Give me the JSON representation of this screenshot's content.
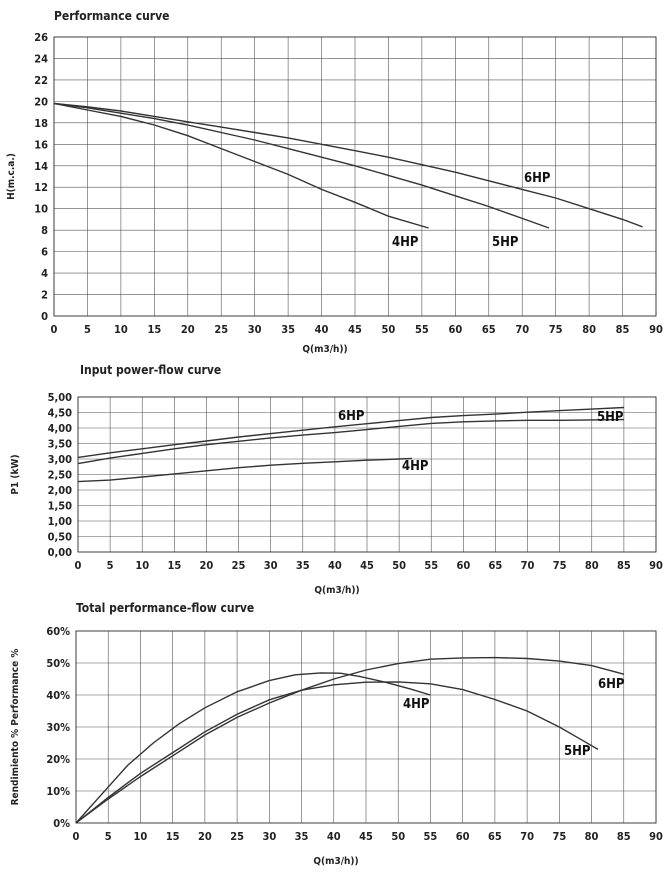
{
  "chart_data": [
    {
      "type": "line",
      "title": "Performance curve",
      "xlabel": "Q(m3/h))",
      "ylabel": "H(m.c.a.)",
      "xlim": [
        0,
        90
      ],
      "ylim": [
        0,
        26
      ],
      "xticks": [
        0,
        5,
        10,
        15,
        20,
        25,
        30,
        35,
        40,
        45,
        50,
        55,
        60,
        65,
        70,
        75,
        80,
        85,
        90
      ],
      "yticks": [
        0,
        2,
        4,
        6,
        8,
        10,
        12,
        14,
        16,
        18,
        20,
        22,
        24,
        26
      ],
      "ytick_labels": [
        "0",
        "2",
        "4",
        "6",
        "8",
        "10",
        "12",
        "14",
        "16",
        "18",
        "20",
        "22",
        "24",
        "26"
      ],
      "grid": true,
      "series": [
        {
          "name": "4HP",
          "x": [
            0,
            5,
            10,
            15,
            20,
            25,
            30,
            35,
            40,
            45,
            50,
            56
          ],
          "y": [
            19.8,
            19.2,
            18.6,
            17.8,
            16.8,
            15.6,
            14.4,
            13.2,
            11.8,
            10.6,
            9.3,
            8.2
          ]
        },
        {
          "name": "5HP",
          "x": [
            0,
            5,
            10,
            15,
            20,
            25,
            30,
            35,
            40,
            45,
            50,
            55,
            60,
            65,
            70,
            74
          ],
          "y": [
            19.8,
            19.4,
            18.9,
            18.4,
            17.8,
            17.1,
            16.4,
            15.6,
            14.8,
            14.0,
            13.1,
            12.2,
            11.2,
            10.2,
            9.1,
            8.2
          ]
        },
        {
          "name": "6HP",
          "x": [
            0,
            5,
            10,
            15,
            20,
            25,
            30,
            35,
            40,
            45,
            50,
            55,
            60,
            65,
            70,
            75,
            80,
            85,
            88
          ],
          "y": [
            19.8,
            19.5,
            19.1,
            18.6,
            18.1,
            17.6,
            17.1,
            16.6,
            16.0,
            15.4,
            14.8,
            14.1,
            13.4,
            12.6,
            11.8,
            11.0,
            10.0,
            9.0,
            8.3
          ]
        }
      ]
    },
    {
      "type": "line",
      "title": "Input power-flow curve",
      "xlabel": "Q(m3/h))",
      "ylabel": "P1 (kW)",
      "xlim": [
        0,
        90
      ],
      "ylim": [
        0,
        5
      ],
      "xticks": [
        0,
        5,
        10,
        15,
        20,
        25,
        30,
        35,
        40,
        45,
        50,
        55,
        60,
        65,
        70,
        75,
        80,
        85,
        90
      ],
      "yticks": [
        0,
        0.5,
        1,
        1.5,
        2,
        2.5,
        3,
        3.5,
        4,
        4.5,
        5
      ],
      "ytick_labels": [
        "0,00",
        "0,50",
        "1,00",
        "1,50",
        "2,00",
        "2,50",
        "3,00",
        "3,50",
        "4,00",
        "4,50",
        "5,00"
      ],
      "grid": true,
      "series": [
        {
          "name": "4HP",
          "x": [
            0,
            5,
            10,
            15,
            20,
            25,
            30,
            35,
            40,
            45,
            50,
            52
          ],
          "y": [
            2.27,
            2.32,
            2.42,
            2.52,
            2.62,
            2.72,
            2.8,
            2.86,
            2.91,
            2.96,
            3.0,
            3.02
          ]
        },
        {
          "name": "5HP",
          "x": [
            0,
            5,
            10,
            15,
            20,
            25,
            30,
            35,
            40,
            45,
            50,
            55,
            60,
            65,
            70,
            75,
            80,
            85
          ],
          "y": [
            2.85,
            3.03,
            3.18,
            3.33,
            3.46,
            3.57,
            3.68,
            3.77,
            3.85,
            3.95,
            4.05,
            4.15,
            4.2,
            4.23,
            4.25,
            4.25,
            4.26,
            4.27
          ]
        },
        {
          "name": "6HP",
          "x": [
            0,
            5,
            10,
            15,
            20,
            25,
            30,
            35,
            40,
            45,
            50,
            55,
            60,
            65,
            70,
            75,
            80,
            85
          ],
          "y": [
            3.05,
            3.2,
            3.33,
            3.46,
            3.58,
            3.71,
            3.82,
            3.93,
            4.04,
            4.14,
            4.24,
            4.34,
            4.4,
            4.45,
            4.51,
            4.56,
            4.61,
            4.66
          ]
        }
      ]
    },
    {
      "type": "line",
      "title": "Total performance-flow curve",
      "xlabel": "Q(m3/h))",
      "ylabel": "Rendimiento %  Performance  %",
      "xlim": [
        0,
        90
      ],
      "ylim": [
        0,
        60
      ],
      "xticks": [
        0,
        5,
        10,
        15,
        20,
        25,
        30,
        35,
        40,
        45,
        50,
        55,
        60,
        65,
        70,
        75,
        80,
        85,
        90
      ],
      "yticks": [
        0,
        10,
        20,
        30,
        40,
        50,
        60
      ],
      "ytick_labels": [
        "0%",
        "10%",
        "20%",
        "30%",
        "40%",
        "50%",
        "60%"
      ],
      "grid": true,
      "series": [
        {
          "name": "4HP",
          "x": [
            0,
            4,
            8,
            12,
            16,
            20,
            25,
            30,
            34,
            38,
            41,
            44,
            48,
            52,
            55
          ],
          "y": [
            0,
            9,
            18,
            25,
            31,
            36,
            41,
            44.5,
            46.3,
            46.9,
            46.8,
            45.8,
            44.0,
            41.8,
            40.0
          ]
        },
        {
          "name": "5HP",
          "x": [
            0,
            5,
            10,
            15,
            20,
            25,
            30,
            35,
            40,
            45,
            50,
            55,
            60,
            65,
            70,
            75,
            78,
            81
          ],
          "y": [
            0,
            8,
            15.5,
            22,
            28.5,
            34,
            38.5,
            41.5,
            43.2,
            44.0,
            44.1,
            43.5,
            41.7,
            38.6,
            35.0,
            30.0,
            26.5,
            23.0
          ]
        },
        {
          "name": "6HP",
          "x": [
            0,
            5,
            10,
            15,
            20,
            25,
            30,
            35,
            40,
            45,
            50,
            55,
            60,
            65,
            70,
            75,
            80,
            85
          ],
          "y": [
            0,
            7.5,
            14.5,
            21,
            27.5,
            33,
            37.5,
            41.5,
            45.0,
            47.8,
            49.8,
            51.2,
            51.6,
            51.7,
            51.4,
            50.6,
            49.2,
            46.5
          ]
        }
      ]
    }
  ]
}
